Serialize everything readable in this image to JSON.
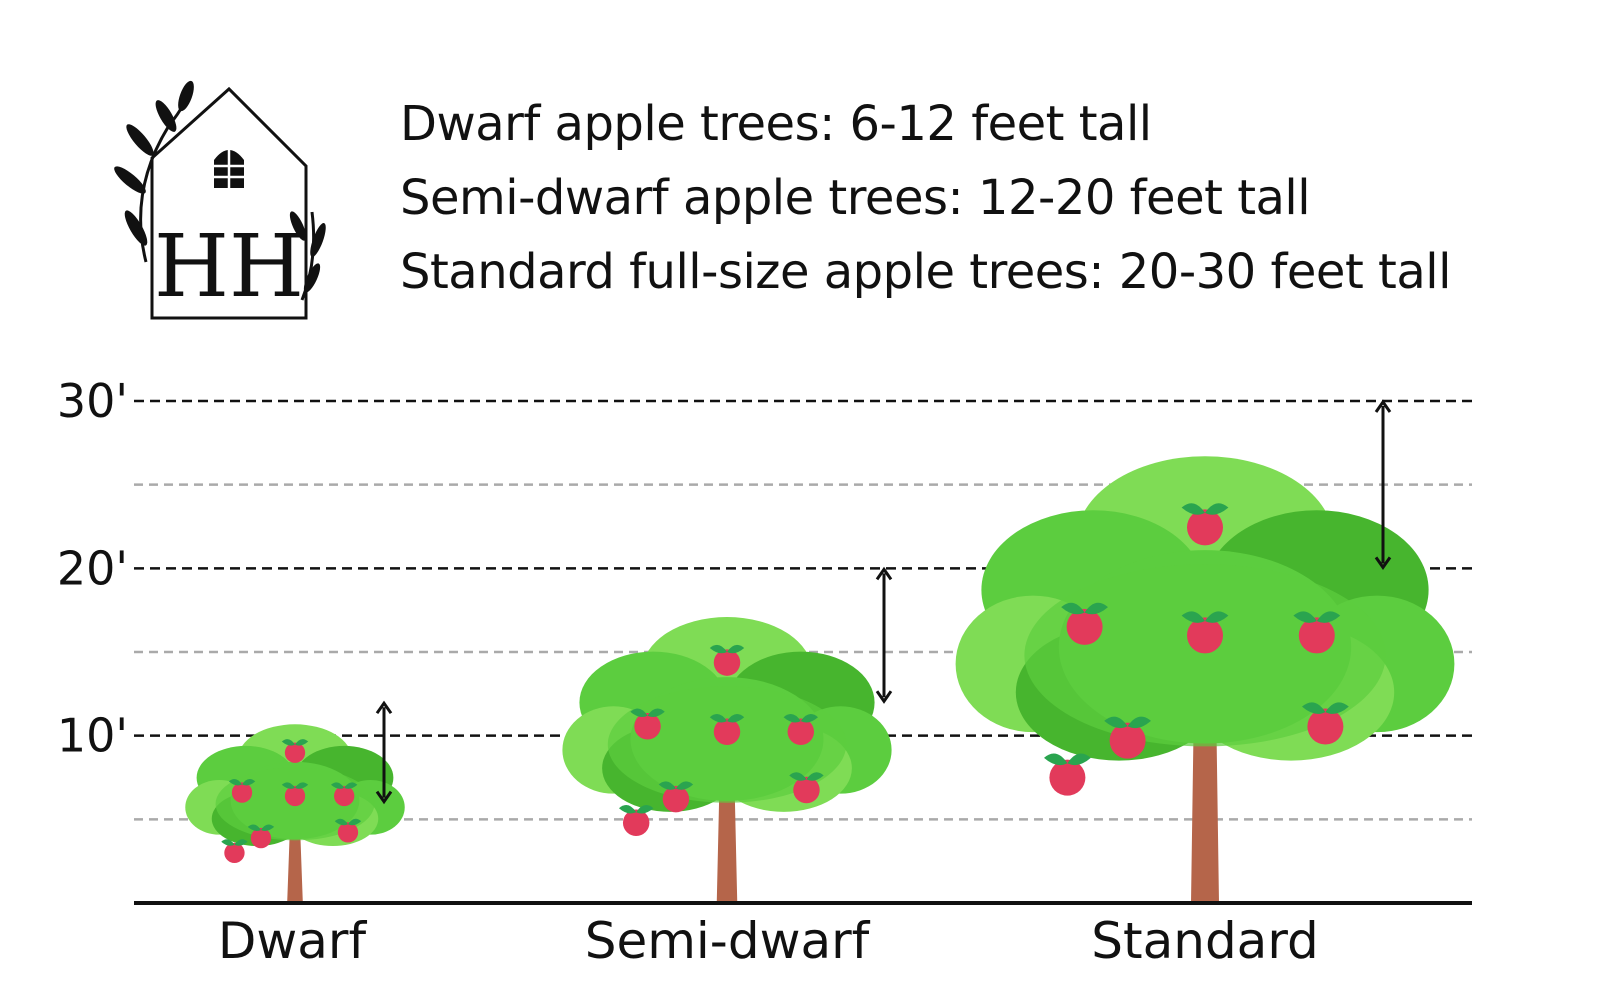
{
  "logo": {
    "text": "HH"
  },
  "descriptions": [
    "Dwarf apple trees: 6-12 feet tall",
    "Semi-dwarf apple trees: 12-20 feet tall",
    "Standard full-size apple trees: 20-30 feet tall"
  ],
  "axis": {
    "tick_labels": [
      "10'",
      "20'",
      "30'"
    ],
    "major_ticks": [
      10,
      20,
      30
    ],
    "minor_ticks": [
      5,
      15,
      25
    ],
    "ylim": [
      0,
      30
    ],
    "unit": "feet"
  },
  "chart_data": {
    "type": "bar",
    "categories": [
      "Dwarf",
      "Semi-dwarf",
      "Standard"
    ],
    "ranges": [
      [
        6,
        12
      ],
      [
        12,
        20
      ],
      [
        20,
        30
      ]
    ],
    "tree_heights": [
      10,
      16,
      25
    ],
    "ylim": [
      0,
      30
    ]
  },
  "colors": {
    "foliage": "#5ccd3f",
    "foliage_light": "#7fdc55",
    "foliage_dark": "#47b52e",
    "trunk": "#b5654a",
    "trunk_dark": "#8c4a34",
    "apple": "#e23a5b",
    "apple_leaf": "#2aa44f",
    "major_line": "#111111",
    "minor_line": "#aaaaaa"
  }
}
